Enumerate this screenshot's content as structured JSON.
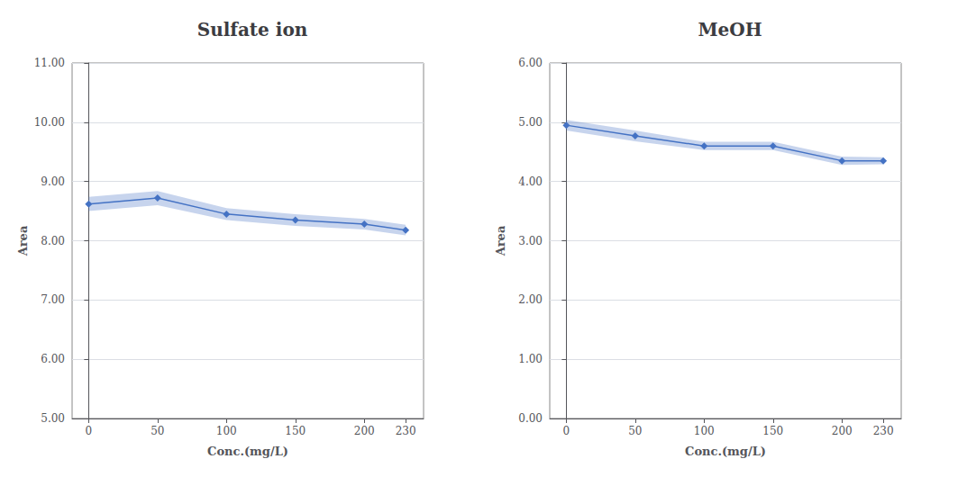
{
  "chart_data": [
    {
      "type": "line",
      "title": "Sulfate ion",
      "x": [
        0,
        50,
        100,
        150,
        200,
        230
      ],
      "values": [
        8.62,
        8.72,
        8.45,
        8.35,
        8.28,
        8.18
      ],
      "y_err": [
        0.12,
        0.12,
        0.1,
        0.1,
        0.09,
        0.09
      ],
      "xlabel": "Conc.(mg/L)",
      "ylabel": "Area",
      "xlim": [
        -12,
        243
      ],
      "xticks": [
        0,
        50,
        100,
        150,
        200,
        230
      ],
      "ylim": [
        5.0,
        11.0
      ],
      "yticks": [
        {
          "value": 5,
          "label": "5.00"
        },
        {
          "value": 6,
          "label": "6.00"
        },
        {
          "value": 7,
          "label": "7.00"
        },
        {
          "value": 8,
          "label": "8.00"
        },
        {
          "value": 9,
          "label": "9.00"
        },
        {
          "value": 10,
          "label": "10.00"
        },
        {
          "value": 11,
          "label": "11.00"
        }
      ],
      "color": "#4472C4",
      "marker": "diamond",
      "grid": true
    },
    {
      "type": "line",
      "title": "MeOH",
      "x": [
        0,
        50,
        100,
        150,
        200,
        230
      ],
      "values": [
        4.95,
        4.77,
        4.6,
        4.6,
        4.35,
        4.35
      ],
      "y_err": [
        0.09,
        0.09,
        0.07,
        0.07,
        0.07,
        0.06
      ],
      "xlabel": "Conc.(mg/L)",
      "ylabel": "Area",
      "xlim": [
        -12,
        243
      ],
      "xticks": [
        0,
        50,
        100,
        150,
        200,
        230
      ],
      "ylim": [
        0.0,
        6.0
      ],
      "yticks": [
        {
          "value": 0,
          "label": "0.00"
        },
        {
          "value": 1,
          "label": "1.00"
        },
        {
          "value": 2,
          "label": "2.00"
        },
        {
          "value": 3,
          "label": "3.00"
        },
        {
          "value": 4,
          "label": "4.00"
        },
        {
          "value": 5,
          "label": "5.00"
        },
        {
          "value": 6,
          "label": "6.00"
        }
      ],
      "color": "#4472C4",
      "marker": "diamond",
      "grid": true
    }
  ]
}
